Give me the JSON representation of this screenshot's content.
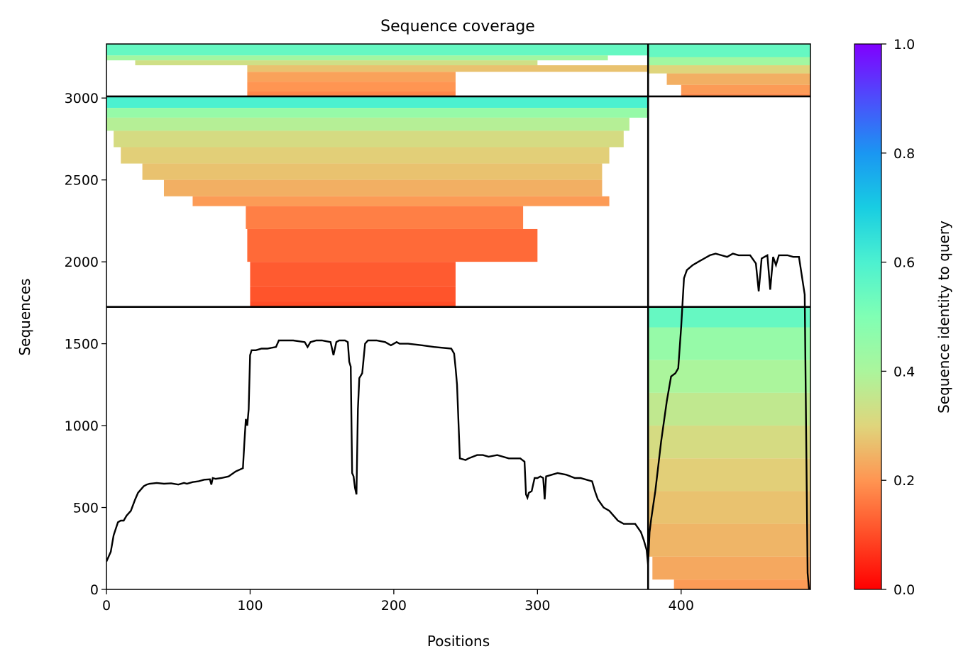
{
  "chart_data": {
    "type": "heatmap",
    "title": "Sequence coverage",
    "xlabel": "Positions",
    "ylabel": "Sequences",
    "xlim": [
      0,
      490
    ],
    "ylim": [
      0,
      3330
    ],
    "xticks": [
      0,
      100,
      200,
      300,
      400
    ],
    "yticks": [
      0,
      500,
      1000,
      1500,
      2000,
      2500,
      3000
    ],
    "colorbar": {
      "label": "Sequence identity to query",
      "range": [
        0.0,
        1.0
      ],
      "ticks": [
        "0.0",
        "0.2",
        "0.4",
        "0.6",
        "0.8",
        "1.0"
      ],
      "colormap": "rainbow"
    },
    "grid": false,
    "block_boundaries": {
      "x_divider": 377,
      "y_dividers": [
        1725,
        3010
      ]
    },
    "msa_blocks": [
      {
        "name": "block-a",
        "x_range": [
          0,
          377
        ],
        "y_range": [
          3010,
          3330
        ],
        "coverage_rows": [
          [
            3300,
            0,
            377,
            0.55
          ],
          [
            3260,
            0,
            349,
            0.42
          ],
          [
            3230,
            20,
            300,
            0.33
          ],
          [
            3200,
            98,
            377,
            0.27
          ],
          [
            3160,
            98,
            243,
            0.22
          ],
          [
            3100,
            98,
            243,
            0.2
          ],
          [
            3040,
            98,
            243,
            0.18
          ]
        ]
      },
      {
        "name": "block-b",
        "x_range": [
          0,
          377
        ],
        "y_range": [
          1725,
          3010
        ],
        "coverage_rows": [
          [
            2990,
            0,
            377,
            0.6
          ],
          [
            2940,
            0,
            377,
            0.45
          ],
          [
            2880,
            0,
            364,
            0.38
          ],
          [
            2800,
            5,
            360,
            0.32
          ],
          [
            2700,
            10,
            350,
            0.29
          ],
          [
            2600,
            25,
            345,
            0.27
          ],
          [
            2500,
            40,
            345,
            0.24
          ],
          [
            2400,
            60,
            350,
            0.21
          ],
          [
            2340,
            97,
            290,
            0.17
          ],
          [
            2200,
            98,
            300,
            0.14
          ],
          [
            2000,
            100,
            243,
            0.12
          ],
          [
            1850,
            100,
            243,
            0.11
          ],
          [
            1760,
            100,
            243,
            0.1
          ]
        ]
      },
      {
        "name": "block-c",
        "x_range": [
          377,
          490
        ],
        "y_range": [
          3010,
          3330
        ],
        "coverage_rows": [
          [
            3300,
            377,
            490,
            0.55
          ],
          [
            3250,
            377,
            490,
            0.42
          ],
          [
            3200,
            377,
            490,
            0.3
          ],
          [
            3150,
            390,
            490,
            0.24
          ],
          [
            3080,
            400,
            490,
            0.21
          ],
          [
            3030,
            400,
            490,
            0.19
          ]
        ]
      },
      {
        "name": "block-d",
        "x_range": [
          377,
          490
        ],
        "y_range": [
          0,
          1725
        ],
        "coverage_rows": [
          [
            1700,
            377,
            490,
            0.55
          ],
          [
            1600,
            377,
            490,
            0.45
          ],
          [
            1400,
            377,
            490,
            0.4
          ],
          [
            1200,
            377,
            490,
            0.36
          ],
          [
            1000,
            377,
            490,
            0.32
          ],
          [
            800,
            377,
            490,
            0.29
          ],
          [
            600,
            377,
            490,
            0.27
          ],
          [
            400,
            377,
            490,
            0.25
          ],
          [
            200,
            380,
            490,
            0.23
          ],
          [
            60,
            395,
            490,
            0.21
          ]
        ]
      }
    ],
    "coverage_line": {
      "name": "coverage",
      "x": [
        0,
        3,
        5,
        8,
        10,
        12,
        14,
        17,
        20,
        22,
        24,
        26,
        28,
        30,
        35,
        40,
        45,
        50,
        54,
        56,
        60,
        64,
        68,
        72,
        73,
        74,
        76,
        80,
        85,
        90,
        95,
        96,
        97,
        98,
        99,
        100,
        101,
        102,
        104,
        108,
        112,
        118,
        120,
        125,
        130,
        138,
        140,
        142,
        146,
        150,
        156,
        158,
        160,
        162,
        166,
        168,
        169,
        170,
        171,
        172,
        173,
        174,
        175,
        176,
        178,
        180,
        182,
        184,
        188,
        194,
        198,
        202,
        204,
        210,
        220,
        228,
        240,
        242,
        243,
        244,
        246,
        250,
        252,
        258,
        262,
        266,
        272,
        280,
        288,
        291,
        292,
        293,
        294,
        296,
        298,
        300,
        302,
        304,
        305,
        306,
        310,
        314,
        320,
        326,
        330,
        334,
        338,
        340,
        342,
        346,
        350,
        352,
        356,
        360,
        364,
        368,
        372,
        374,
        376,
        377,
        378,
        379,
        380,
        382,
        386,
        390,
        393,
        396,
        398,
        400,
        402,
        404,
        408,
        412,
        416,
        420,
        424,
        428,
        432,
        436,
        440,
        444,
        448,
        452,
        454,
        456,
        458,
        460,
        462,
        464,
        466,
        468,
        470,
        472,
        474,
        478,
        482,
        486,
        488,
        489,
        490
      ],
      "y": [
        170,
        230,
        330,
        410,
        420,
        420,
        450,
        480,
        550,
        590,
        610,
        630,
        640,
        645,
        650,
        645,
        648,
        640,
        650,
        645,
        655,
        660,
        670,
        672,
        640,
        680,
        675,
        680,
        690,
        720,
        740,
        900,
        1040,
        1000,
        1100,
        1430,
        1460,
        1460,
        1460,
        1470,
        1470,
        1480,
        1520,
        1520,
        1520,
        1510,
        1480,
        1510,
        1520,
        1520,
        1510,
        1430,
        1510,
        1520,
        1520,
        1510,
        1390,
        1360,
        710,
        690,
        620,
        580,
        1100,
        1290,
        1320,
        1500,
        1520,
        1520,
        1520,
        1510,
        1490,
        1510,
        1500,
        1500,
        1490,
        1480,
        1470,
        1440,
        1350,
        1250,
        800,
        790,
        800,
        820,
        820,
        810,
        820,
        800,
        800,
        780,
        580,
        560,
        590,
        600,
        680,
        680,
        690,
        680,
        550,
        690,
        700,
        710,
        700,
        680,
        680,
        670,
        660,
        600,
        550,
        500,
        480,
        460,
        420,
        400,
        400,
        400,
        350,
        300,
        240,
        150,
        350,
        420,
        480,
        600,
        900,
        1150,
        1300,
        1320,
        1350,
        1600,
        1900,
        1950,
        1980,
        2000,
        2020,
        2040,
        2050,
        2040,
        2030,
        2050,
        2040,
        2040,
        2040,
        1990,
        1820,
        2020,
        2030,
        2040,
        1830,
        2030,
        1980,
        2040,
        2040,
        2040,
        2040,
        2030,
        2030,
        1800,
        100,
        0
      ]
    }
  }
}
